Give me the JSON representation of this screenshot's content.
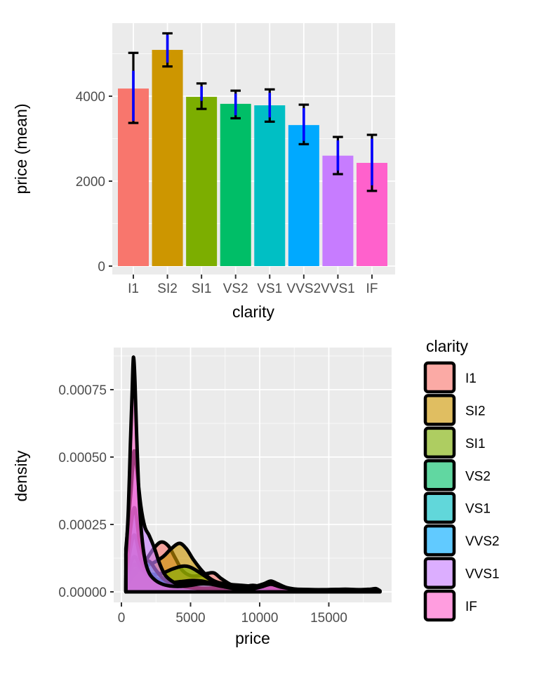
{
  "theme": {
    "background": "#FFFFFF",
    "panel_background": "#EBEBEB",
    "grid_major_color": "#FFFFFF",
    "grid_minor_color": "#FFFFFF",
    "tick_mark_color": "#333333",
    "tick_label_color": "#4D4D4D",
    "axis_title_color": "#000000"
  },
  "chart_data": [
    {
      "type": "bar",
      "title": "",
      "xlabel": "clarity",
      "ylabel": "price (mean)",
      "categories": [
        "I1",
        "SI2",
        "SI1",
        "VS2",
        "VS1",
        "VVS2",
        "VVS1",
        "IF"
      ],
      "values": [
        4180,
        5090,
        3985,
        3820,
        3785,
        3320,
        2600,
        2430
      ],
      "bar_colors": [
        "#F8766D",
        "#CD9600",
        "#7CAE00",
        "#00BE67",
        "#00BFC4",
        "#00A9FF",
        "#C77CFF",
        "#FF61CC"
      ],
      "error_bars_black": {
        "color": "#000000",
        "ranges": [
          [
            3370,
            5020
          ],
          [
            4700,
            5480
          ],
          [
            3700,
            4300
          ],
          [
            3480,
            4130
          ],
          [
            3400,
            4160
          ],
          [
            2870,
            3800
          ],
          [
            2165,
            3040
          ],
          [
            1770,
            3090
          ]
        ]
      },
      "error_bars_blue": {
        "color": "#0000FF",
        "ranges": [
          [
            3420,
            4600
          ],
          [
            4790,
            5445
          ],
          [
            3890,
            4230
          ],
          [
            3550,
            4060
          ],
          [
            3500,
            4080
          ],
          [
            2950,
            3720
          ],
          [
            2250,
            2960
          ],
          [
            1900,
            3000
          ]
        ]
      },
      "y_ticks": [
        0,
        2000,
        4000
      ],
      "y_tick_labels": [
        "0",
        "2000",
        "4000"
      ],
      "y_minor_ticks": [
        1000,
        3000,
        5000
      ],
      "ylim": [
        0,
        5720
      ],
      "grid": true,
      "legend": false
    },
    {
      "type": "area",
      "title": "",
      "xlabel": "price",
      "ylabel": "density",
      "x_ticks": [
        0,
        5000,
        10000,
        15000
      ],
      "x_tick_labels": [
        "0",
        "5000",
        "10000",
        "15000"
      ],
      "x_minor_ticks": [
        2500,
        7500,
        12500,
        17500
      ],
      "y_ticks": [
        0,
        0.00025,
        0.0005,
        0.00075
      ],
      "y_tick_labels": [
        "0.00000",
        "0.00025",
        "0.00050",
        "0.00075"
      ],
      "y_minor_ticks": [
        0.000125,
        0.000375,
        0.000625,
        0.000875
      ],
      "xlim": [
        -560,
        19550
      ],
      "ylim": [
        0,
        0.000901
      ],
      "fill_alpha": 0.62,
      "outline_color": "#000000",
      "outline_width": 5,
      "grid": true,
      "legend": {
        "title": "clarity",
        "position": "right"
      },
      "series": [
        {
          "name": "I1",
          "color": "#F8766D",
          "points": [
            [
              326,
              2e-05
            ],
            [
              700,
              5e-05
            ],
            [
              1200,
              8e-05
            ],
            [
              1800,
              0.00012
            ],
            [
              2400,
              0.000165
            ],
            [
              2900,
              0.000185
            ],
            [
              3400,
              0.00017
            ],
            [
              3900,
              0.000125
            ],
            [
              4400,
              8e-05
            ],
            [
              5000,
              6e-05
            ],
            [
              5600,
              6e-05
            ],
            [
              6200,
              6.8e-05
            ],
            [
              6700,
              7e-05
            ],
            [
              7200,
              5e-05
            ],
            [
              7800,
              3e-05
            ],
            [
              8500,
              1.5e-05
            ],
            [
              9300,
              8e-06
            ],
            [
              10200,
              5e-06
            ],
            [
              11000,
              2e-06
            ]
          ]
        },
        {
          "name": "SI2",
          "color": "#CD9600",
          "points": [
            [
              326,
              3e-05
            ],
            [
              800,
              7e-05
            ],
            [
              1400,
              9e-05
            ],
            [
              2200,
              0.000105
            ],
            [
              3000,
              0.00013
            ],
            [
              3600,
              0.00016
            ],
            [
              4200,
              0.00018
            ],
            [
              4700,
              0.00016
            ],
            [
              5200,
              0.00012
            ],
            [
              5800,
              8e-05
            ],
            [
              6400,
              5e-05
            ],
            [
              7000,
              3.5e-05
            ],
            [
              7800,
              2.8e-05
            ],
            [
              8700,
              2.4e-05
            ],
            [
              9600,
              2e-05
            ],
            [
              10500,
              1.6e-05
            ],
            [
              11500,
              1.2e-05
            ],
            [
              12500,
              1e-05
            ],
            [
              14000,
              8e-06
            ],
            [
              15500,
              7e-06
            ],
            [
              16500,
              5e-06
            ],
            [
              17500,
              3e-06
            ],
            [
              18400,
              2e-06
            ]
          ]
        },
        {
          "name": "SI1",
          "color": "#7CAE00",
          "points": [
            [
              326,
              4e-05
            ],
            [
              900,
              0.0001
            ],
            [
              1500,
              8e-05
            ],
            [
              2200,
              6.5e-05
            ],
            [
              3000,
              7e-05
            ],
            [
              3700,
              8.5e-05
            ],
            [
              4400,
              9.5e-05
            ],
            [
              4900,
              9.3e-05
            ],
            [
              5400,
              8e-05
            ],
            [
              6000,
              6e-05
            ],
            [
              6600,
              4e-05
            ],
            [
              7300,
              2.5e-05
            ],
            [
              8000,
              1.8e-05
            ],
            [
              9000,
              1.2e-05
            ],
            [
              10000,
              8e-06
            ],
            [
              11000,
              5e-06
            ],
            [
              12500,
              3e-06
            ],
            [
              14000,
              2e-06
            ]
          ]
        },
        {
          "name": "VS2",
          "color": "#00BE67",
          "points": [
            [
              326,
              5e-05
            ],
            [
              900,
              0.00013
            ],
            [
              1400,
              9e-05
            ],
            [
              2000,
              6e-05
            ],
            [
              2700,
              4.2e-05
            ],
            [
              3500,
              3.5e-05
            ],
            [
              4300,
              3.8e-05
            ],
            [
              5100,
              4.2e-05
            ],
            [
              5800,
              4e-05
            ],
            [
              6500,
              3.2e-05
            ],
            [
              7200,
              2.2e-05
            ],
            [
              8000,
              1.6e-05
            ],
            [
              9000,
              1.3e-05
            ],
            [
              10000,
              1.1e-05
            ],
            [
              11000,
              1e-05
            ],
            [
              12000,
              8e-06
            ],
            [
              13500,
              5e-06
            ],
            [
              15000,
              4e-06
            ],
            [
              16500,
              3e-06
            ],
            [
              18000,
              2e-06
            ]
          ]
        },
        {
          "name": "VS1",
          "color": "#00BFC4",
          "points": [
            [
              326,
              6e-05
            ],
            [
              900,
              0.00021
            ],
            [
              1400,
              0.00012
            ],
            [
              2000,
              7e-05
            ],
            [
              2700,
              4.5e-05
            ],
            [
              3500,
              3.5e-05
            ],
            [
              4300,
              3e-05
            ],
            [
              5100,
              3.2e-05
            ],
            [
              5900,
              3.5e-05
            ],
            [
              6600,
              3.2e-05
            ],
            [
              7400,
              2.2e-05
            ],
            [
              8300,
              1.6e-05
            ],
            [
              9300,
              1.3e-05
            ],
            [
              10300,
              1e-05
            ],
            [
              11500,
              8e-06
            ],
            [
              13000,
              7e-06
            ],
            [
              14500,
              8e-06
            ],
            [
              16000,
              9e-06
            ],
            [
              17000,
              7e-06
            ],
            [
              18200,
              4e-06
            ],
            [
              18700,
              2e-06
            ]
          ]
        },
        {
          "name": "VVS2",
          "color": "#00A9FF",
          "points": [
            [
              326,
              8e-05
            ],
            [
              900,
              0.00031
            ],
            [
              1300,
              0.00019
            ],
            [
              1700,
              0.000125
            ],
            [
              2100,
              0.00011
            ],
            [
              2500,
              8e-05
            ],
            [
              3000,
              5e-05
            ],
            [
              3600,
              3e-05
            ],
            [
              4400,
              2e-05
            ],
            [
              5300,
              1.5e-05
            ],
            [
              6300,
              1.3e-05
            ],
            [
              7200,
              1.8e-05
            ],
            [
              8000,
              2e-05
            ],
            [
              8800,
              1.8e-05
            ],
            [
              9500,
              2.4e-05
            ],
            [
              10200,
              1.8e-05
            ],
            [
              11000,
              1e-05
            ],
            [
              12000,
              5e-06
            ],
            [
              13000,
              2e-06
            ]
          ]
        },
        {
          "name": "VVS1",
          "color": "#C77CFF",
          "points": [
            [
              326,
              0.00016
            ],
            [
              700,
              0.00038
            ],
            [
              900,
              0.00052
            ],
            [
              1100,
              0.00046
            ],
            [
              1400,
              0.00032
            ],
            [
              1700,
              0.00024
            ],
            [
              2000,
              0.00021
            ],
            [
              2400,
              0.00016
            ],
            [
              2800,
              0.0001
            ],
            [
              3200,
              6e-05
            ],
            [
              3800,
              3.5e-05
            ],
            [
              4500,
              2e-05
            ],
            [
              5500,
              1.3e-05
            ],
            [
              6500,
              1e-05
            ],
            [
              7500,
              1e-05
            ],
            [
              8500,
              1.2e-05
            ],
            [
              9500,
              1.8e-05
            ],
            [
              10300,
              3e-05
            ],
            [
              10800,
              4e-05
            ],
            [
              11300,
              3e-05
            ],
            [
              12000,
              1.5e-05
            ],
            [
              13000,
              8e-06
            ],
            [
              14500,
              5e-06
            ],
            [
              16000,
              3e-06
            ]
          ]
        },
        {
          "name": "IF",
          "color": "#FF61CC",
          "points": [
            [
              326,
              0.00014
            ],
            [
              500,
              0.0003
            ],
            [
              650,
              0.00055
            ],
            [
              780,
              0.00075
            ],
            [
              870,
              0.00087
            ],
            [
              980,
              0.00078
            ],
            [
              1100,
              0.00058
            ],
            [
              1250,
              0.00038
            ],
            [
              1450,
              0.00022
            ],
            [
              1700,
              0.00012
            ],
            [
              2000,
              7e-05
            ],
            [
              2400,
              4.5e-05
            ],
            [
              2900,
              3e-05
            ],
            [
              3500,
              2.2e-05
            ],
            [
              4200,
              2e-05
            ],
            [
              5000,
              2.4e-05
            ],
            [
              5800,
              3e-05
            ],
            [
              6500,
              2.8e-05
            ],
            [
              7300,
              2e-05
            ],
            [
              8200,
              1.2e-05
            ],
            [
              9200,
              1e-05
            ],
            [
              10100,
              1.8e-05
            ],
            [
              10800,
              2.8e-05
            ],
            [
              11500,
              1.8e-05
            ],
            [
              12500,
              1e-05
            ],
            [
              13500,
              6e-06
            ],
            [
              15000,
              8e-06
            ],
            [
              16200,
              1e-05
            ],
            [
              17200,
              8e-06
            ],
            [
              18000,
              1e-05
            ],
            [
              18400,
              1.2e-05
            ],
            [
              18700,
              4e-06
            ]
          ]
        }
      ]
    }
  ],
  "legend": {
    "title": "clarity",
    "items": [
      "I1",
      "SI2",
      "SI1",
      "VS2",
      "VS1",
      "VVS2",
      "VVS1",
      "IF"
    ]
  }
}
